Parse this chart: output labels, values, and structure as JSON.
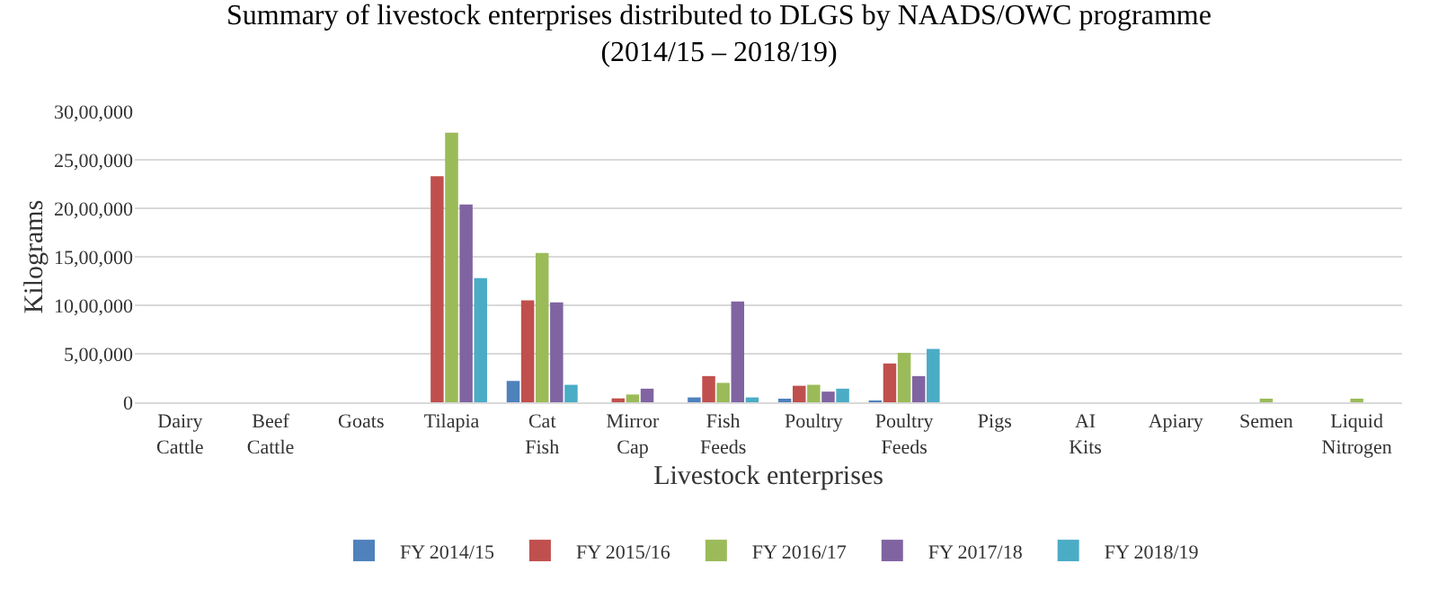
{
  "chart_data": {
    "type": "bar",
    "title": "Summary of livestock enterprises distributed to DLGS by NAADS/OWC programme\n(2014/15 – 2018/19)",
    "xlabel": "Livestock enterprises",
    "ylabel": "Kilograms",
    "categories": [
      "Dairy Cattle",
      "Beef Cattle",
      "Goats",
      "Tilapia",
      "Cat Fish",
      "Mirror Cap",
      "Fish Feeds",
      "Poultry",
      "Poultry Feeds",
      "Pigs",
      "AI Kits",
      "Apiary",
      "Semen",
      "Liquid Nitrogen"
    ],
    "series": [
      {
        "name": "FY 2014/15",
        "color": "#4f81bd",
        "values": [
          0,
          0,
          0,
          0,
          220000,
          0,
          50000,
          20000,
          10000,
          0,
          0,
          0,
          0,
          0
        ]
      },
      {
        "name": "FY 2015/16",
        "color": "#c0504d",
        "values": [
          0,
          0,
          0,
          2330000,
          1050000,
          40000,
          270000,
          170000,
          400000,
          0,
          0,
          0,
          0,
          0
        ]
      },
      {
        "name": "FY 2016/17",
        "color": "#9bbb59",
        "values": [
          0,
          0,
          0,
          2780000,
          1540000,
          80000,
          200000,
          180000,
          510000,
          0,
          0,
          0,
          30000,
          20000
        ]
      },
      {
        "name": "FY 2017/18",
        "color": "#8064a2",
        "values": [
          0,
          0,
          0,
          2040000,
          1030000,
          140000,
          1040000,
          110000,
          270000,
          0,
          0,
          0,
          0,
          0
        ]
      },
      {
        "name": "FY 2018/19",
        "color": "#4bacc6",
        "values": [
          0,
          0,
          0,
          1280000,
          180000,
          0,
          50000,
          140000,
          550000,
          0,
          0,
          0,
          0,
          0
        ]
      }
    ],
    "ylim": [
      0,
      3000000
    ],
    "yticks": [
      0,
      {
        "value": 500000,
        "label": "5,00,000"
      },
      {
        "value": 1000000,
        "label": "10,00,000"
      },
      {
        "value": 1500000,
        "label": "15,00,000"
      },
      {
        "value": 2000000,
        "label": "20,00,000"
      },
      {
        "value": 2500000,
        "label": "25,00,000"
      },
      {
        "value": 3000000,
        "label": "30,00,000"
      }
    ],
    "grid": "y",
    "legend": "bottom"
  }
}
